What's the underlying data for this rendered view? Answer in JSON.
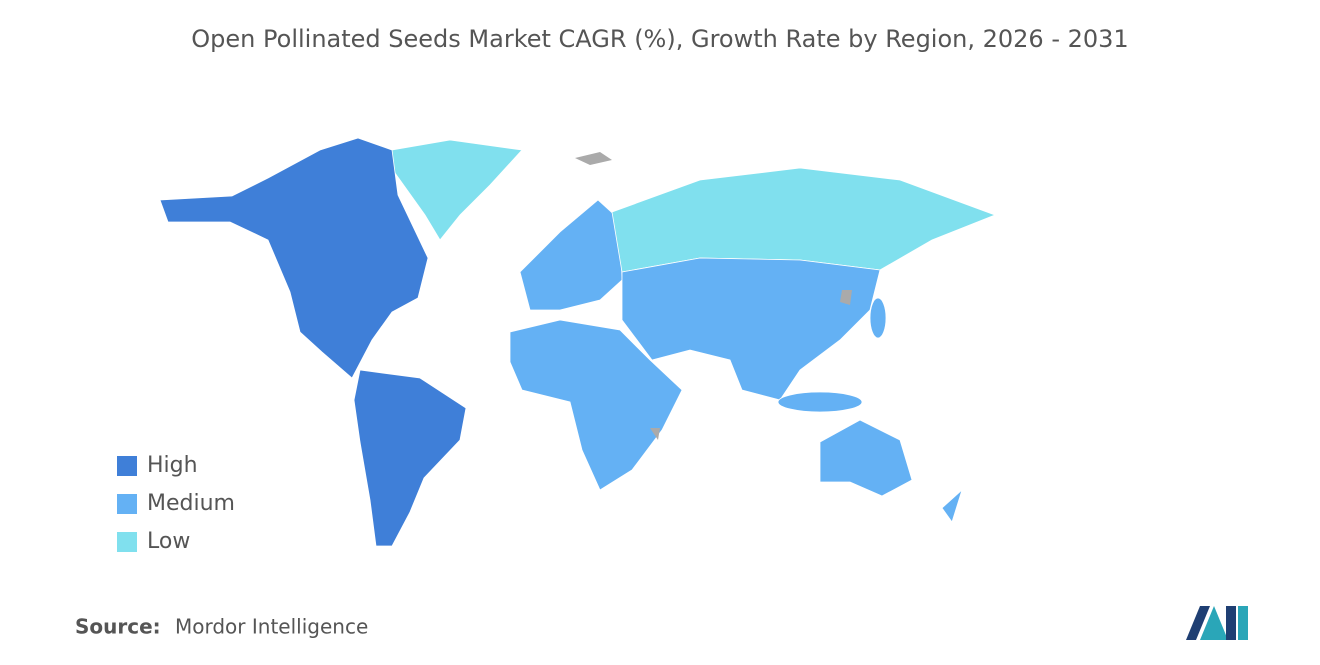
{
  "title": "Open Pollinated Seeds Market CAGR (%), Growth Rate by Region, 2026 - 2031",
  "legend": [
    {
      "label": "High",
      "color": "#3f7fd8"
    },
    {
      "label": "Medium",
      "color": "#64b1f4"
    },
    {
      "label": "Low",
      "color": "#80e0ee"
    }
  ],
  "source": {
    "label": "Source:",
    "text": "Mordor Intelligence"
  }
}
